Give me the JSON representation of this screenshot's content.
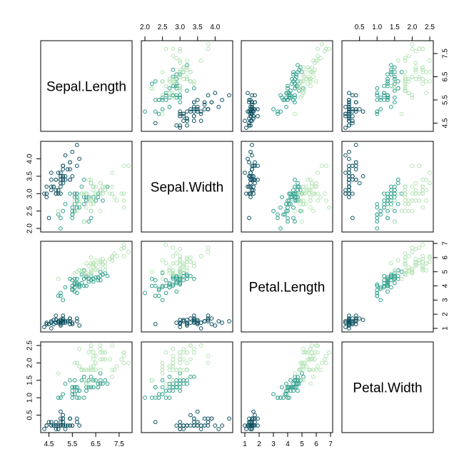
{
  "chart_data": {
    "type": "scatter",
    "variables": [
      "Sepal.Length",
      "Sepal.Width",
      "Petal.Length",
      "Petal.Width"
    ],
    "ranges": [
      [
        4.3,
        7.9
      ],
      [
        2.0,
        4.4
      ],
      [
        1.0,
        6.9
      ],
      [
        0.1,
        2.5
      ]
    ],
    "ticks": [
      [
        "4.5",
        "5.5",
        "6.5",
        "7.5"
      ],
      [
        "2.0",
        "2.5",
        "3.0",
        "3.5",
        "4.0"
      ],
      [
        "1",
        "2",
        "3",
        "4",
        "5",
        "6",
        "7"
      ],
      [
        "0.5",
        "1.0",
        "1.5",
        "2.0",
        "2.5"
      ]
    ],
    "bottom_ticks": [
      [
        "4.5",
        "5.5",
        "6.5",
        "7.5"
      ],
      null,
      [
        "1",
        "2",
        "3",
        "4",
        "5",
        "6",
        "7"
      ],
      null
    ],
    "top_ticks": [
      null,
      [
        "2.0",
        "2.5",
        "3.0",
        "3.5",
        "4.0"
      ],
      null,
      [
        "0.5",
        "1.0",
        "1.5",
        "2.0",
        "2.5"
      ]
    ],
    "left_ticks": [
      null,
      [
        "2.0",
        "2.5",
        "3.0",
        "3.5",
        "4.0"
      ],
      null,
      [
        "0.5",
        "1.0",
        "1.5",
        "2.0",
        "2.5"
      ]
    ],
    "right_ticks": [
      [
        "4.5",
        "5.5",
        "6.5",
        "7.5"
      ],
      null,
      [
        "1",
        "2",
        "3",
        "4",
        "5",
        "6",
        "7"
      ],
      null
    ],
    "group_colors": [
      "#0b4f5f",
      "#2e9f8a",
      "#b5e3b5"
    ],
    "marker": "open-circle",
    "groups": [
      {
        "color_index": 0,
        "points": [
          [
            5.1,
            3.5,
            1.4,
            0.2
          ],
          [
            4.9,
            3.0,
            1.4,
            0.2
          ],
          [
            4.7,
            3.2,
            1.3,
            0.2
          ],
          [
            4.6,
            3.1,
            1.5,
            0.2
          ],
          [
            5.0,
            3.6,
            1.4,
            0.2
          ],
          [
            5.4,
            3.9,
            1.7,
            0.4
          ],
          [
            4.6,
            3.4,
            1.4,
            0.3
          ],
          [
            5.0,
            3.4,
            1.5,
            0.2
          ],
          [
            4.4,
            2.9,
            1.4,
            0.2
          ],
          [
            4.9,
            3.1,
            1.5,
            0.1
          ],
          [
            5.4,
            3.7,
            1.5,
            0.2
          ],
          [
            4.8,
            3.4,
            1.6,
            0.2
          ],
          [
            4.8,
            3.0,
            1.4,
            0.1
          ],
          [
            4.3,
            3.0,
            1.1,
            0.1
          ],
          [
            5.8,
            4.0,
            1.2,
            0.2
          ],
          [
            5.7,
            4.4,
            1.5,
            0.4
          ],
          [
            5.4,
            3.9,
            1.3,
            0.4
          ],
          [
            5.1,
            3.5,
            1.4,
            0.3
          ],
          [
            5.7,
            3.8,
            1.7,
            0.3
          ],
          [
            5.1,
            3.8,
            1.5,
            0.3
          ],
          [
            5.4,
            3.4,
            1.7,
            0.2
          ],
          [
            5.1,
            3.7,
            1.5,
            0.4
          ],
          [
            4.6,
            3.6,
            1.0,
            0.2
          ],
          [
            5.1,
            3.3,
            1.7,
            0.5
          ],
          [
            4.8,
            3.4,
            1.9,
            0.2
          ],
          [
            5.0,
            3.0,
            1.6,
            0.2
          ],
          [
            5.0,
            3.4,
            1.6,
            0.4
          ],
          [
            5.2,
            3.5,
            1.5,
            0.2
          ],
          [
            5.2,
            3.4,
            1.4,
            0.2
          ],
          [
            4.7,
            3.2,
            1.6,
            0.2
          ],
          [
            4.8,
            3.1,
            1.6,
            0.2
          ],
          [
            5.4,
            3.4,
            1.5,
            0.4
          ],
          [
            5.2,
            4.1,
            1.5,
            0.1
          ],
          [
            5.5,
            4.2,
            1.4,
            0.2
          ],
          [
            4.9,
            3.1,
            1.5,
            0.2
          ],
          [
            5.0,
            3.2,
            1.2,
            0.2
          ],
          [
            5.5,
            3.5,
            1.3,
            0.2
          ],
          [
            4.9,
            3.6,
            1.4,
            0.1
          ],
          [
            4.4,
            3.0,
            1.3,
            0.2
          ],
          [
            5.1,
            3.4,
            1.5,
            0.2
          ],
          [
            5.0,
            3.5,
            1.3,
            0.3
          ],
          [
            4.5,
            2.3,
            1.3,
            0.3
          ],
          [
            4.4,
            3.2,
            1.3,
            0.2
          ],
          [
            5.0,
            3.5,
            1.6,
            0.6
          ],
          [
            5.1,
            3.8,
            1.9,
            0.4
          ],
          [
            4.8,
            3.0,
            1.4,
            0.3
          ],
          [
            5.1,
            3.8,
            1.6,
            0.2
          ],
          [
            4.6,
            3.2,
            1.4,
            0.2
          ],
          [
            5.3,
            3.7,
            1.5,
            0.2
          ],
          [
            5.0,
            3.3,
            1.4,
            0.2
          ]
        ]
      },
      {
        "color_index": 1,
        "points": [
          [
            7.0,
            3.2,
            4.7,
            1.4
          ],
          [
            6.4,
            3.2,
            4.5,
            1.5
          ],
          [
            6.9,
            3.1,
            4.9,
            1.5
          ],
          [
            5.5,
            2.3,
            4.0,
            1.3
          ],
          [
            6.5,
            2.8,
            4.6,
            1.5
          ],
          [
            5.7,
            2.8,
            4.5,
            1.3
          ],
          [
            6.3,
            3.3,
            4.7,
            1.6
          ],
          [
            4.9,
            2.4,
            3.3,
            1.0
          ],
          [
            6.6,
            2.9,
            4.6,
            1.3
          ],
          [
            5.2,
            2.7,
            3.9,
            1.4
          ],
          [
            5.0,
            2.0,
            3.5,
            1.0
          ],
          [
            5.9,
            3.0,
            4.2,
            1.5
          ],
          [
            6.0,
            2.2,
            4.0,
            1.0
          ],
          [
            6.1,
            2.9,
            4.7,
            1.4
          ],
          [
            5.6,
            2.9,
            3.6,
            1.3
          ],
          [
            6.7,
            3.1,
            4.4,
            1.4
          ],
          [
            5.6,
            3.0,
            4.5,
            1.5
          ],
          [
            5.8,
            2.7,
            4.1,
            1.0
          ],
          [
            6.2,
            2.2,
            4.5,
            1.5
          ],
          [
            5.6,
            2.5,
            3.9,
            1.1
          ],
          [
            5.9,
            3.2,
            4.8,
            1.8
          ],
          [
            6.1,
            2.8,
            4.0,
            1.3
          ],
          [
            6.3,
            2.5,
            4.9,
            1.5
          ],
          [
            6.1,
            2.8,
            4.7,
            1.2
          ],
          [
            6.4,
            2.9,
            4.3,
            1.3
          ],
          [
            6.6,
            3.0,
            4.4,
            1.4
          ],
          [
            6.8,
            2.8,
            4.8,
            1.4
          ],
          [
            6.7,
            3.0,
            5.0,
            1.7
          ],
          [
            6.0,
            2.9,
            4.5,
            1.5
          ],
          [
            5.7,
            2.6,
            3.5,
            1.0
          ],
          [
            5.5,
            2.4,
            3.8,
            1.1
          ],
          [
            5.5,
            2.4,
            3.7,
            1.0
          ],
          [
            5.8,
            2.7,
            3.9,
            1.2
          ],
          [
            6.0,
            2.7,
            5.1,
            1.6
          ],
          [
            5.4,
            3.0,
            4.5,
            1.5
          ],
          [
            6.0,
            3.4,
            4.5,
            1.6
          ],
          [
            6.7,
            3.1,
            4.7,
            1.5
          ],
          [
            6.3,
            2.3,
            4.4,
            1.3
          ],
          [
            5.6,
            3.0,
            4.1,
            1.3
          ],
          [
            5.5,
            2.5,
            4.0,
            1.3
          ],
          [
            5.5,
            2.6,
            4.4,
            1.2
          ],
          [
            6.1,
            3.0,
            4.6,
            1.4
          ],
          [
            5.8,
            2.6,
            4.0,
            1.2
          ],
          [
            5.0,
            2.3,
            3.3,
            1.0
          ],
          [
            5.6,
            2.7,
            4.2,
            1.3
          ],
          [
            5.7,
            3.0,
            4.2,
            1.2
          ],
          [
            5.7,
            2.9,
            4.2,
            1.3
          ],
          [
            6.2,
            2.9,
            4.3,
            1.3
          ],
          [
            5.1,
            2.5,
            3.0,
            1.1
          ],
          [
            5.7,
            2.8,
            4.1,
            1.3
          ]
        ]
      },
      {
        "color_index": 2,
        "points": [
          [
            6.3,
            3.3,
            6.0,
            2.5
          ],
          [
            5.8,
            2.7,
            5.1,
            1.9
          ],
          [
            7.1,
            3.0,
            5.9,
            2.1
          ],
          [
            6.3,
            2.9,
            5.6,
            1.8
          ],
          [
            6.5,
            3.0,
            5.8,
            2.2
          ],
          [
            7.6,
            3.0,
            6.6,
            2.1
          ],
          [
            4.9,
            2.5,
            4.5,
            1.7
          ],
          [
            7.3,
            2.9,
            6.3,
            1.8
          ],
          [
            6.7,
            2.5,
            5.8,
            1.8
          ],
          [
            7.2,
            3.6,
            6.1,
            2.5
          ],
          [
            6.5,
            3.2,
            5.1,
            2.0
          ],
          [
            6.4,
            2.7,
            5.3,
            1.9
          ],
          [
            6.8,
            3.0,
            5.5,
            2.1
          ],
          [
            5.7,
            2.5,
            5.0,
            2.0
          ],
          [
            5.8,
            2.8,
            5.1,
            2.4
          ],
          [
            6.4,
            3.2,
            5.3,
            2.3
          ],
          [
            6.5,
            3.0,
            5.5,
            1.8
          ],
          [
            7.7,
            3.8,
            6.7,
            2.2
          ],
          [
            7.7,
            2.6,
            6.9,
            2.3
          ],
          [
            6.0,
            2.2,
            5.0,
            1.5
          ],
          [
            6.9,
            3.2,
            5.7,
            2.3
          ],
          [
            5.6,
            2.8,
            4.9,
            2.0
          ],
          [
            7.7,
            2.8,
            6.7,
            2.0
          ],
          [
            6.3,
            2.7,
            4.9,
            1.8
          ],
          [
            6.7,
            3.3,
            5.7,
            2.1
          ],
          [
            7.2,
            3.2,
            6.0,
            1.8
          ],
          [
            6.2,
            2.8,
            4.8,
            1.8
          ],
          [
            6.1,
            3.0,
            4.9,
            1.8
          ],
          [
            6.4,
            2.8,
            5.6,
            2.1
          ],
          [
            7.2,
            3.0,
            5.8,
            1.6
          ],
          [
            7.4,
            2.8,
            6.1,
            1.9
          ],
          [
            7.9,
            3.8,
            6.4,
            2.0
          ],
          [
            6.4,
            2.8,
            5.6,
            2.2
          ],
          [
            6.3,
            2.8,
            5.1,
            1.5
          ],
          [
            6.1,
            2.6,
            5.6,
            1.4
          ],
          [
            7.7,
            3.0,
            6.1,
            2.3
          ],
          [
            6.3,
            3.4,
            5.6,
            2.4
          ],
          [
            6.4,
            3.1,
            5.5,
            1.8
          ],
          [
            6.0,
            3.0,
            4.8,
            1.8
          ],
          [
            6.9,
            3.1,
            5.4,
            2.1
          ],
          [
            6.7,
            3.1,
            5.6,
            2.4
          ],
          [
            6.9,
            3.1,
            5.1,
            2.3
          ],
          [
            5.8,
            2.7,
            5.1,
            1.9
          ],
          [
            6.8,
            3.2,
            5.9,
            2.3
          ],
          [
            6.7,
            3.3,
            5.7,
            2.5
          ],
          [
            6.7,
            3.0,
            5.2,
            2.3
          ],
          [
            6.3,
            2.5,
            5.0,
            1.9
          ],
          [
            6.5,
            3.0,
            5.2,
            2.0
          ],
          [
            6.2,
            3.4,
            5.4,
            2.3
          ],
          [
            5.9,
            3.0,
            5.1,
            1.8
          ]
        ]
      }
    ]
  }
}
